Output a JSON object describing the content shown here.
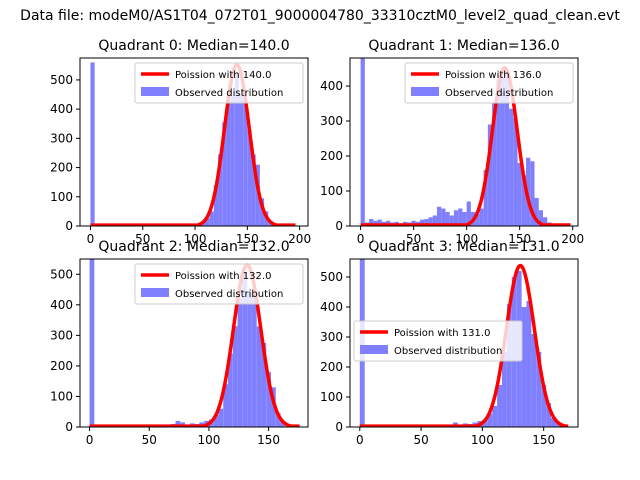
{
  "suptitle": "Data file: modeM0/AS1T04_072T01_9000004780_33310cztM0_level2_quad_clean.evt",
  "colors": {
    "hist": "#8080ff",
    "fit": "#ff0000",
    "axes": "#000000"
  },
  "chart_data": [
    {
      "type": "bar",
      "title": "Quadrant 0: Median=140.0",
      "xlim": [
        -10,
        208
      ],
      "ylim": [
        0,
        575
      ],
      "xticks": [
        0,
        50,
        100,
        150,
        200
      ],
      "yticks": [
        0,
        100,
        200,
        300,
        400,
        500
      ],
      "legend": {
        "location": "upper-right",
        "fit_label": "Poission with 140.0",
        "hist_label": "Observed distribution"
      },
      "fit_mean": 140,
      "fit_peak": 552,
      "fit_xmax": 196,
      "bins": [
        [
          0,
          4,
          560
        ],
        [
          66,
          70,
          3
        ],
        [
          70,
          74,
          5
        ],
        [
          74,
          78,
          3
        ],
        [
          78,
          82,
          4
        ],
        [
          82,
          86,
          2
        ],
        [
          86,
          90,
          3
        ],
        [
          90,
          94,
          2
        ],
        [
          94,
          98,
          4
        ],
        [
          98,
          102,
          2
        ],
        [
          102,
          106,
          6
        ],
        [
          106,
          110,
          14
        ],
        [
          110,
          114,
          28
        ],
        [
          114,
          118,
          50
        ],
        [
          118,
          122,
          140
        ],
        [
          122,
          126,
          245
        ],
        [
          126,
          130,
          355
        ],
        [
          130,
          134,
          430
        ],
        [
          134,
          138,
          445
        ],
        [
          138,
          142,
          525
        ],
        [
          142,
          146,
          455
        ],
        [
          146,
          150,
          430
        ],
        [
          150,
          154,
          330
        ],
        [
          154,
          158,
          245
        ],
        [
          158,
          162,
          210
        ],
        [
          162,
          166,
          95
        ],
        [
          166,
          170,
          50
        ],
        [
          170,
          174,
          15
        ],
        [
          174,
          178,
          5
        ],
        [
          178,
          182,
          2
        ]
      ]
    },
    {
      "type": "bar",
      "title": "Quadrant 1: Median=136.0",
      "xlim": [
        -10,
        205
      ],
      "ylim": [
        0,
        480
      ],
      "xticks": [
        0,
        50,
        100,
        150,
        200
      ],
      "yticks": [
        0,
        100,
        200,
        300,
        400
      ],
      "legend": {
        "location": "upper-right",
        "fit_label": "Poission with 136.0",
        "hist_label": "Observed distribution"
      },
      "fit_mean": 136,
      "fit_peak": 452,
      "fit_xmax": 198,
      "bins": [
        [
          0,
          4,
          480
        ],
        [
          4,
          8,
          10
        ],
        [
          8,
          12,
          20
        ],
        [
          12,
          16,
          15
        ],
        [
          16,
          20,
          18
        ],
        [
          20,
          24,
          12
        ],
        [
          24,
          28,
          15
        ],
        [
          28,
          32,
          10
        ],
        [
          32,
          36,
          12
        ],
        [
          36,
          40,
          8
        ],
        [
          40,
          44,
          12
        ],
        [
          44,
          48,
          10
        ],
        [
          48,
          52,
          15
        ],
        [
          52,
          56,
          12
        ],
        [
          56,
          60,
          18
        ],
        [
          60,
          64,
          20
        ],
        [
          64,
          68,
          25
        ],
        [
          68,
          72,
          30
        ],
        [
          72,
          76,
          55
        ],
        [
          76,
          80,
          50
        ],
        [
          80,
          84,
          40
        ],
        [
          84,
          88,
          30
        ],
        [
          88,
          92,
          45
        ],
        [
          92,
          96,
          50
        ],
        [
          96,
          100,
          40
        ],
        [
          100,
          104,
          70
        ],
        [
          104,
          108,
          40
        ],
        [
          108,
          112,
          35
        ],
        [
          112,
          116,
          50
        ],
        [
          116,
          120,
          160
        ],
        [
          120,
          124,
          290
        ],
        [
          124,
          128,
          350
        ],
        [
          128,
          132,
          420
        ],
        [
          132,
          136,
          425
        ],
        [
          136,
          140,
          440
        ],
        [
          140,
          144,
          335
        ],
        [
          144,
          148,
          310
        ],
        [
          148,
          152,
          180
        ],
        [
          152,
          156,
          145
        ],
        [
          156,
          160,
          195
        ],
        [
          160,
          164,
          185
        ],
        [
          164,
          168,
          80
        ],
        [
          168,
          172,
          45
        ],
        [
          172,
          176,
          25
        ],
        [
          176,
          180,
          10
        ]
      ]
    },
    {
      "type": "bar",
      "title": "Quadrant 2: Median=132.0",
      "xlim": [
        -8,
        183
      ],
      "ylim": [
        0,
        550
      ],
      "xticks": [
        0,
        50,
        100,
        150
      ],
      "yticks": [
        0,
        100,
        200,
        300,
        400,
        500
      ],
      "legend": {
        "location": "upper-right",
        "fit_label": "Poission with 132.0",
        "hist_label": "Observed distribution"
      },
      "fit_mean": 132,
      "fit_peak": 530,
      "fit_xmax": 176,
      "bins": [
        [
          0,
          4,
          560
        ],
        [
          68,
          72,
          10
        ],
        [
          72,
          76,
          20
        ],
        [
          76,
          80,
          15
        ],
        [
          80,
          84,
          8
        ],
        [
          84,
          88,
          12
        ],
        [
          88,
          92,
          10
        ],
        [
          92,
          96,
          15
        ],
        [
          96,
          100,
          20
        ],
        [
          100,
          104,
          25
        ],
        [
          104,
          108,
          40
        ],
        [
          108,
          112,
          60
        ],
        [
          112,
          116,
          140
        ],
        [
          116,
          120,
          240
        ],
        [
          120,
          124,
          330
        ],
        [
          124,
          128,
          420
        ],
        [
          128,
          132,
          505
        ],
        [
          132,
          136,
          440
        ],
        [
          136,
          140,
          430
        ],
        [
          140,
          144,
          330
        ],
        [
          144,
          148,
          275
        ],
        [
          148,
          152,
          180
        ],
        [
          152,
          156,
          130
        ],
        [
          156,
          160,
          45
        ],
        [
          160,
          164,
          20
        ]
      ]
    },
    {
      "type": "bar",
      "title": "Quadrant 3: Median=131.0",
      "xlim": [
        -8,
        178
      ],
      "ylim": [
        0,
        560
      ],
      "xticks": [
        0,
        50,
        100,
        150
      ],
      "yticks": [
        0,
        100,
        200,
        300,
        400,
        500
      ],
      "legend": {
        "location": "center-left",
        "fit_label": "Poission with 131.0",
        "hist_label": "Observed distribution"
      },
      "fit_mean": 131,
      "fit_peak": 538,
      "fit_xmax": 170,
      "bins": [
        [
          0,
          4,
          560
        ],
        [
          76,
          80,
          15
        ],
        [
          80,
          84,
          8
        ],
        [
          84,
          88,
          12
        ],
        [
          88,
          92,
          10
        ],
        [
          92,
          96,
          15
        ],
        [
          96,
          100,
          20
        ],
        [
          100,
          104,
          25
        ],
        [
          104,
          108,
          45
        ],
        [
          108,
          112,
          70
        ],
        [
          112,
          116,
          140
        ],
        [
          116,
          120,
          250
        ],
        [
          120,
          124,
          410
        ],
        [
          124,
          128,
          500
        ],
        [
          128,
          132,
          520
        ],
        [
          132,
          136,
          400
        ],
        [
          136,
          140,
          420
        ],
        [
          140,
          144,
          310
        ],
        [
          144,
          148,
          250
        ],
        [
          148,
          152,
          140
        ],
        [
          152,
          156,
          80
        ],
        [
          156,
          160,
          30
        ],
        [
          160,
          164,
          15
        ]
      ]
    }
  ]
}
